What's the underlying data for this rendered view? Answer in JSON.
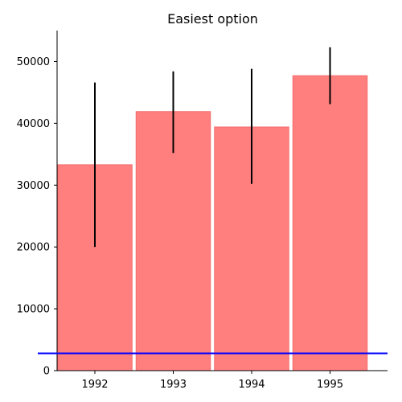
{
  "chart_data": {
    "type": "bar",
    "title": "Easiest option",
    "xlabel": "",
    "ylabel": "",
    "categories": [
      "1992",
      "1993",
      "1994",
      "1995"
    ],
    "values": [
      33300,
      41900,
      39400,
      47700
    ],
    "error_low": [
      20000,
      35200,
      30200,
      43100
    ],
    "error_high": [
      46600,
      48400,
      48800,
      52300
    ],
    "ylim": [
      0,
      55000
    ],
    "yticks": [
      0,
      10000,
      20000,
      30000,
      40000,
      50000
    ],
    "reference_line": {
      "y": 2800,
      "color": "#0000ff"
    },
    "bar_color": "#ff7f7f",
    "bar_edge_color": "#f26b6b",
    "error_color": "#000000",
    "grid": false
  }
}
